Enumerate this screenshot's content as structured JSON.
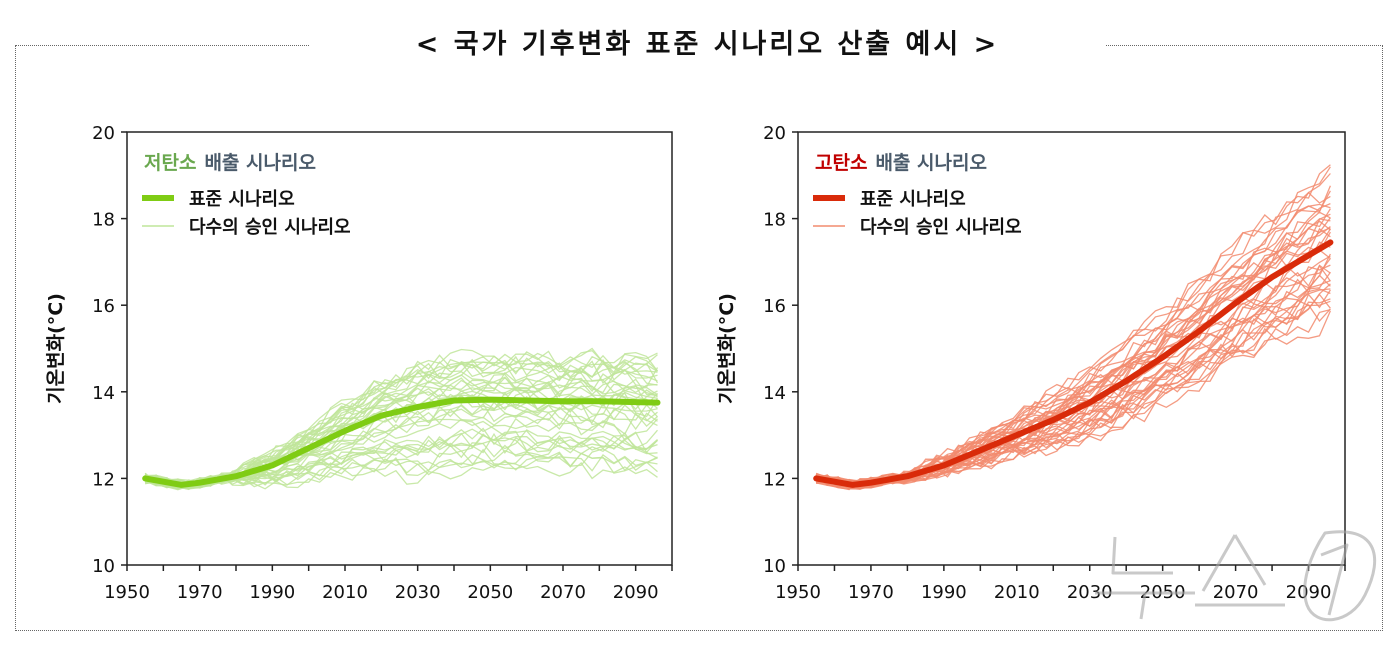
{
  "title": "< 국가 기후변화 표준 시나리오 산출 예시 >",
  "watermark": "뉴스1",
  "chart_data": [
    {
      "type": "line",
      "title_highlight": "저탄소",
      "title_rest": "배출 시나리오",
      "ylabel": "기온변화(°C)",
      "xlabel": "",
      "xlim": [
        1950,
        2100
      ],
      "ylim": [
        10,
        20
      ],
      "xticks": [
        1950,
        1970,
        1990,
        2010,
        2030,
        2050,
        2070,
        2090
      ],
      "yticks": [
        10,
        12,
        14,
        16,
        18,
        20
      ],
      "legend_placement": "top-left",
      "colors": {
        "highlight": "#6aa84f",
        "standard": "#7fcc14",
        "ensemble": "#bfe59a"
      },
      "series": [
        {
          "name": "표준 시나리오",
          "x": [
            1955,
            1965,
            1970,
            1980,
            1990,
            2000,
            2010,
            2020,
            2030,
            2040,
            2050,
            2060,
            2070,
            2080,
            2096
          ],
          "y": [
            12.0,
            11.85,
            11.9,
            12.05,
            12.3,
            12.7,
            13.1,
            13.45,
            13.65,
            13.8,
            13.82,
            13.8,
            13.78,
            13.78,
            13.75
          ]
        },
        {
          "name": "다수의 승인 시나리오",
          "count_approx": 40,
          "end_range_2096": [
            12.1,
            14.9
          ]
        }
      ]
    },
    {
      "type": "line",
      "title_highlight": "고탄소",
      "title_rest": "배출 시나리오",
      "ylabel": "기온변화(°C)",
      "xlabel": "",
      "xlim": [
        1950,
        2100
      ],
      "ylim": [
        10,
        20
      ],
      "xticks": [
        1950,
        1970,
        1990,
        2010,
        2030,
        2050,
        2070,
        2090
      ],
      "yticks": [
        10,
        12,
        14,
        16,
        18,
        20
      ],
      "legend_placement": "top-left",
      "colors": {
        "highlight": "#c00000",
        "standard": "#d92b0a",
        "ensemble": "#f28b6e"
      },
      "series": [
        {
          "name": "표준 시나리오",
          "x": [
            1955,
            1965,
            1970,
            1980,
            1990,
            2000,
            2010,
            2020,
            2030,
            2040,
            2050,
            2060,
            2070,
            2080,
            2096
          ],
          "y": [
            12.0,
            11.85,
            11.9,
            12.05,
            12.3,
            12.65,
            13.0,
            13.35,
            13.75,
            14.25,
            14.8,
            15.4,
            16.05,
            16.65,
            17.45
          ]
        },
        {
          "name": "다수의 승인 시나리오",
          "count_approx": 40,
          "end_range_2096": [
            15.6,
            19.2
          ]
        }
      ]
    }
  ]
}
